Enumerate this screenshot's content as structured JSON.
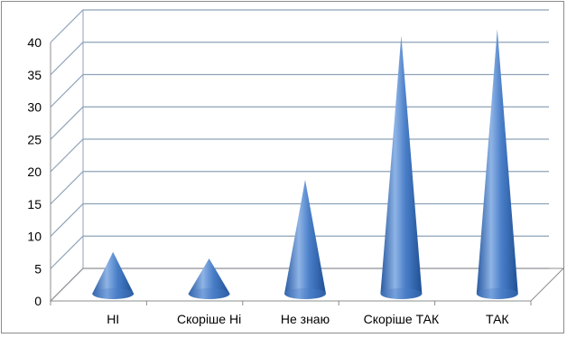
{
  "chart_data": {
    "type": "bar",
    "bar_shape": "cone",
    "three_d": true,
    "categories": [
      "НІ",
      "Скоріше Ні",
      "Не знаю",
      "Скоріше ТАК",
      "ТАК"
    ],
    "values": [
      5,
      4,
      16,
      38,
      39
    ],
    "ylim": [
      0,
      40
    ],
    "yticks": [
      "0",
      "5",
      "10",
      "15",
      "20",
      "25",
      "30",
      "35",
      "40"
    ],
    "grid": true,
    "legend": "none",
    "colors": {
      "bar_light": "#8fb4e6",
      "bar_mid": "#4a7fc8",
      "bar_dark": "#1f4f94",
      "grid": "#8ea2b8"
    }
  }
}
